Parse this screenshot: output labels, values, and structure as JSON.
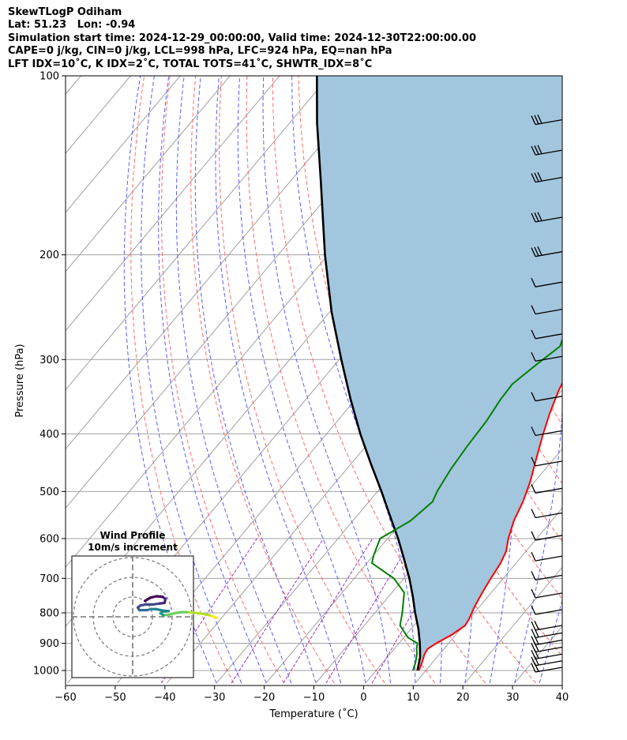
{
  "header": {
    "title": "SkewTLogP Odiham",
    "location": "Lat: 51.23   Lon: -0.94",
    "times": "Simulation start time: 2024-12-29_00:00:00, Valid time: 2024-12-30T22:00:00.00",
    "params": "CAPE=0 j/kg, CIN=0 j/kg, LCL=998 hPa, LFC=924 hPa, EQ=nan hPa",
    "indices": "LFT IDX=10˚C, K IDX=2˚C, TOTAL TOTS=41˚C, SHWTR_IDX=8˚C"
  },
  "colors": {
    "temperature": "#ff0000",
    "dewpoint": "#008000",
    "parcel": "#000000",
    "shade": "#a3c6df",
    "dry_adiabat": "#ff6b6b",
    "moist_adiabat": "#5c5cff",
    "mixing_ratio": "#9b30c8",
    "isotherm": "#a0a0a0"
  },
  "chart_data": [
    {
      "type": "line",
      "subtype": "skew-T log-P",
      "xlabel": "Temperature ($^\\circ$C)",
      "xlabel_display": "Temperature (˚C)",
      "ylabel": "Pressure (hPa)",
      "xlim": [
        -60,
        40
      ],
      "ylim": [
        1050,
        100
      ],
      "yscale": "log",
      "x_ticks": [
        -60,
        -50,
        -40,
        -30,
        -20,
        -10,
        0,
        10,
        20,
        30,
        40
      ],
      "x_tick_labels": [
        "−60",
        "−50",
        "−40",
        "−30",
        "−20",
        "−10",
        "0",
        "10",
        "20",
        "30",
        "40"
      ],
      "y_ticks": [
        100,
        200,
        300,
        400,
        500,
        600,
        700,
        800,
        900,
        1000
      ],
      "y_tick_labels": [
        "100",
        "200",
        "300",
        "400",
        "500",
        "600",
        "700",
        "800",
        "900",
        "1000"
      ],
      "grid": true,
      "series": [
        {
          "key": "temperature",
          "points": [
            [
              1000,
              8.6
            ],
            [
              970,
              7.9
            ],
            [
              940,
              7.0
            ],
            [
              920,
              6.7
            ],
            [
              900,
              7.5
            ],
            [
              870,
              9.2
            ],
            [
              840,
              10.3
            ],
            [
              820,
              10.0
            ],
            [
              780,
              9.0
            ],
            [
              740,
              8.2
            ],
            [
              700,
              7.5
            ],
            [
              660,
              6.9
            ],
            [
              630,
              6.0
            ],
            [
              600,
              4.3
            ],
            [
              560,
              2.4
            ],
            [
              520,
              1.0
            ],
            [
              480,
              -1.0
            ],
            [
              440,
              -3.6
            ],
            [
              400,
              -6.4
            ],
            [
              370,
              -8.5
            ],
            [
              340,
              -10.5
            ],
            [
              310,
              -12.2
            ],
            [
              290,
              -13.4
            ],
            [
              270,
              -15.5
            ],
            [
              250,
              -17.5
            ],
            [
              240,
              -18.4
            ],
            [
              225,
              -19.7
            ],
            [
              210,
              -20.2
            ],
            [
              200,
              -20.2
            ],
            [
              190,
              -20.1
            ],
            [
              180,
              -19.4
            ],
            [
              170,
              -17.4
            ],
            [
              155,
              -14.2
            ],
            [
              145,
              -13.1
            ],
            [
              135,
              -11.3
            ],
            [
              125,
              -9.5
            ],
            [
              115,
              -7.6
            ],
            [
              105,
              -5.9
            ],
            [
              100,
              -4.9
            ]
          ]
        },
        {
          "key": "dewpoint",
          "points": [
            [
              1000,
              7.4
            ],
            [
              970,
              6.6
            ],
            [
              940,
              5.5
            ],
            [
              920,
              4.5
            ],
            [
              900,
              3.7
            ],
            [
              880,
              0.8
            ],
            [
              840,
              -2.8
            ],
            [
              800,
              -4.5
            ],
            [
              740,
              -7.5
            ],
            [
              700,
              -12.0
            ],
            [
              660,
              -19.0
            ],
            [
              640,
              -20.0
            ],
            [
              600,
              -21.5
            ],
            [
              560,
              -18.4
            ],
            [
              520,
              -17.2
            ],
            [
              500,
              -18.0
            ],
            [
              460,
              -19.0
            ],
            [
              420,
              -19.6
            ],
            [
              380,
              -20.0
            ],
            [
              350,
              -20.8
            ],
            [
              330,
              -21.0
            ],
            [
              320,
              -20.4
            ],
            [
              305,
              -19.4
            ],
            [
              285,
              -17.8
            ],
            [
              270,
              -19.2
            ],
            [
              250,
              -21.2
            ],
            [
              235,
              -23.0
            ],
            [
              220,
              -24.2
            ],
            [
              200,
              -25.6
            ],
            [
              185,
              -26.0
            ],
            [
              175,
              -25.0
            ],
            [
              160,
              -23.2
            ],
            [
              150,
              -21.9
            ],
            [
              140,
              -21.8
            ],
            [
              130,
              -22.0
            ],
            [
              120,
              -20.7
            ],
            [
              110,
              -18.2
            ],
            [
              100,
              -15.8
            ]
          ]
        },
        {
          "key": "parcel",
          "points": [
            [
              1000,
              8.3
            ],
            [
              950,
              6.6
            ],
            [
              900,
              4.2
            ],
            [
              850,
              1.4
            ],
            [
              800,
              -1.9
            ],
            [
              750,
              -5.2
            ],
            [
              700,
              -8.9
            ],
            [
              650,
              -13.2
            ],
            [
              600,
              -17.9
            ],
            [
              550,
              -23.3
            ],
            [
              500,
              -29.2
            ],
            [
              450,
              -35.9
            ],
            [
              400,
              -43.2
            ],
            [
              350,
              -51.0
            ],
            [
              300,
              -59.6
            ],
            [
              250,
              -69.5
            ],
            [
              200,
              -80.6
            ],
            [
              150,
              -94.0
            ],
            [
              120,
              -104.5
            ],
            [
              100,
              -112.5
            ]
          ]
        }
      ],
      "wind_barbs": [
        {
          "p": 1000,
          "barbs": 2
        },
        {
          "p": 975,
          "barbs": 2
        },
        {
          "p": 950,
          "barbs": 2
        },
        {
          "p": 925,
          "barbs": 2
        },
        {
          "p": 900,
          "barbs": 2
        },
        {
          "p": 875,
          "barbs": 2
        },
        {
          "p": 850,
          "barbs": 2
        },
        {
          "p": 800,
          "barbs": 1
        },
        {
          "p": 750,
          "barbs": 1
        },
        {
          "p": 700,
          "barbs": 1
        },
        {
          "p": 650,
          "barbs": 1
        },
        {
          "p": 600,
          "barbs": 1
        },
        {
          "p": 550,
          "barbs": 1
        },
        {
          "p": 500,
          "barbs": 1
        },
        {
          "p": 450,
          "barbs": 1
        },
        {
          "p": 400,
          "barbs": 1
        },
        {
          "p": 350,
          "barbs": 1
        },
        {
          "p": 300,
          "barbs": 1
        },
        {
          "p": 275,
          "barbs": 1
        },
        {
          "p": 250,
          "barbs": 1
        },
        {
          "p": 225,
          "barbs": 1
        },
        {
          "p": 200,
          "barbs": 3
        },
        {
          "p": 175,
          "barbs": 3
        },
        {
          "p": 150,
          "barbs": 3
        },
        {
          "p": 135,
          "barbs": 3
        },
        {
          "p": 120,
          "barbs": 3
        }
      ]
    },
    {
      "type": "scatter",
      "subtype": "hodograph",
      "title": "Wind Profile",
      "subtitle": "10m/s increment",
      "rings": 3,
      "points_uv": [
        [
          16.4,
          -0.2
        ],
        [
          15.0,
          0.3
        ],
        [
          13.5,
          0.6
        ],
        [
          12.0,
          0.8
        ],
        [
          10.6,
          0.9
        ],
        [
          9.4,
          0.9
        ],
        [
          8.2,
          0.7
        ],
        [
          7.0,
          0.4
        ],
        [
          6.0,
          0.3
        ],
        [
          5.4,
          0.7
        ],
        [
          5.9,
          1.0
        ],
        [
          7.0,
          1.1
        ],
        [
          6.0,
          1.2
        ],
        [
          4.5,
          1.5
        ],
        [
          3.6,
          1.5
        ],
        [
          2.8,
          1.3
        ],
        [
          2.0,
          1.3
        ],
        [
          1.3,
          1.3
        ],
        [
          1.0,
          1.8
        ],
        [
          1.5,
          2.2
        ],
        [
          2.5,
          2.4
        ],
        [
          4.0,
          2.4
        ],
        [
          5.3,
          2.6
        ],
        [
          6.2,
          2.7
        ],
        [
          6.4,
          3.5
        ],
        [
          5.8,
          3.9
        ],
        [
          4.6,
          4.0
        ],
        [
          3.4,
          3.7
        ],
        [
          2.4,
          3.1
        ]
      ]
    }
  ]
}
